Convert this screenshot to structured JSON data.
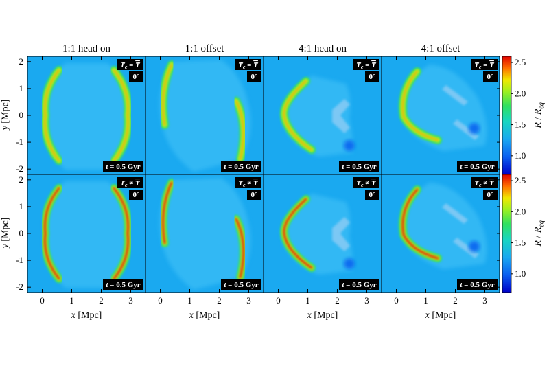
{
  "chart_data": {
    "type": "heatmap",
    "panel_titles": [
      "1:1 head on",
      "1:1 offset",
      "4:1 head on",
      "4:1 offset"
    ],
    "row_labels": [
      "T_e = T̄",
      "T_e ≠ T̄"
    ],
    "rows": [
      {
        "temperature_label_sub": "e",
        "temperature_label_rel": "=",
        "temperature_label_var": "T",
        "temperature_label_lead": "T"
      },
      {
        "temperature_label_sub": "e",
        "temperature_label_rel": "≠",
        "temperature_label_var": "T",
        "temperature_label_lead": "T"
      }
    ],
    "angle_label": "0°",
    "time_label_var": "t",
    "time_label_value": "= 0.5 Gyr",
    "xlabel_var": "x",
    "xlabel_unit": "[Mpc]",
    "ylabel_var": "y",
    "ylabel_unit": "[Mpc]",
    "x_ticks": [
      "0",
      "1",
      "2",
      "3"
    ],
    "y_ticks": [
      "2",
      "1",
      "0",
      "-1",
      "-2"
    ],
    "xlim": [
      -0.5,
      3.5
    ],
    "ylim": [
      -2.2,
      2.2
    ],
    "colorbar": {
      "label_var": "R",
      "label_sep": "/",
      "label_var2": "R",
      "label_sub": "eq",
      "ticks": [
        "2.5",
        "2.0",
        "1.5",
        "1.0"
      ],
      "range": [
        0.7,
        2.6
      ],
      "colors": [
        "#0000cc",
        "#0a6cf0",
        "#1aa9f0",
        "#20d0a0",
        "#38e050",
        "#a8f020",
        "#f0e000",
        "#ff6000",
        "#e00000"
      ]
    },
    "background_color": "#1aa9f0"
  }
}
